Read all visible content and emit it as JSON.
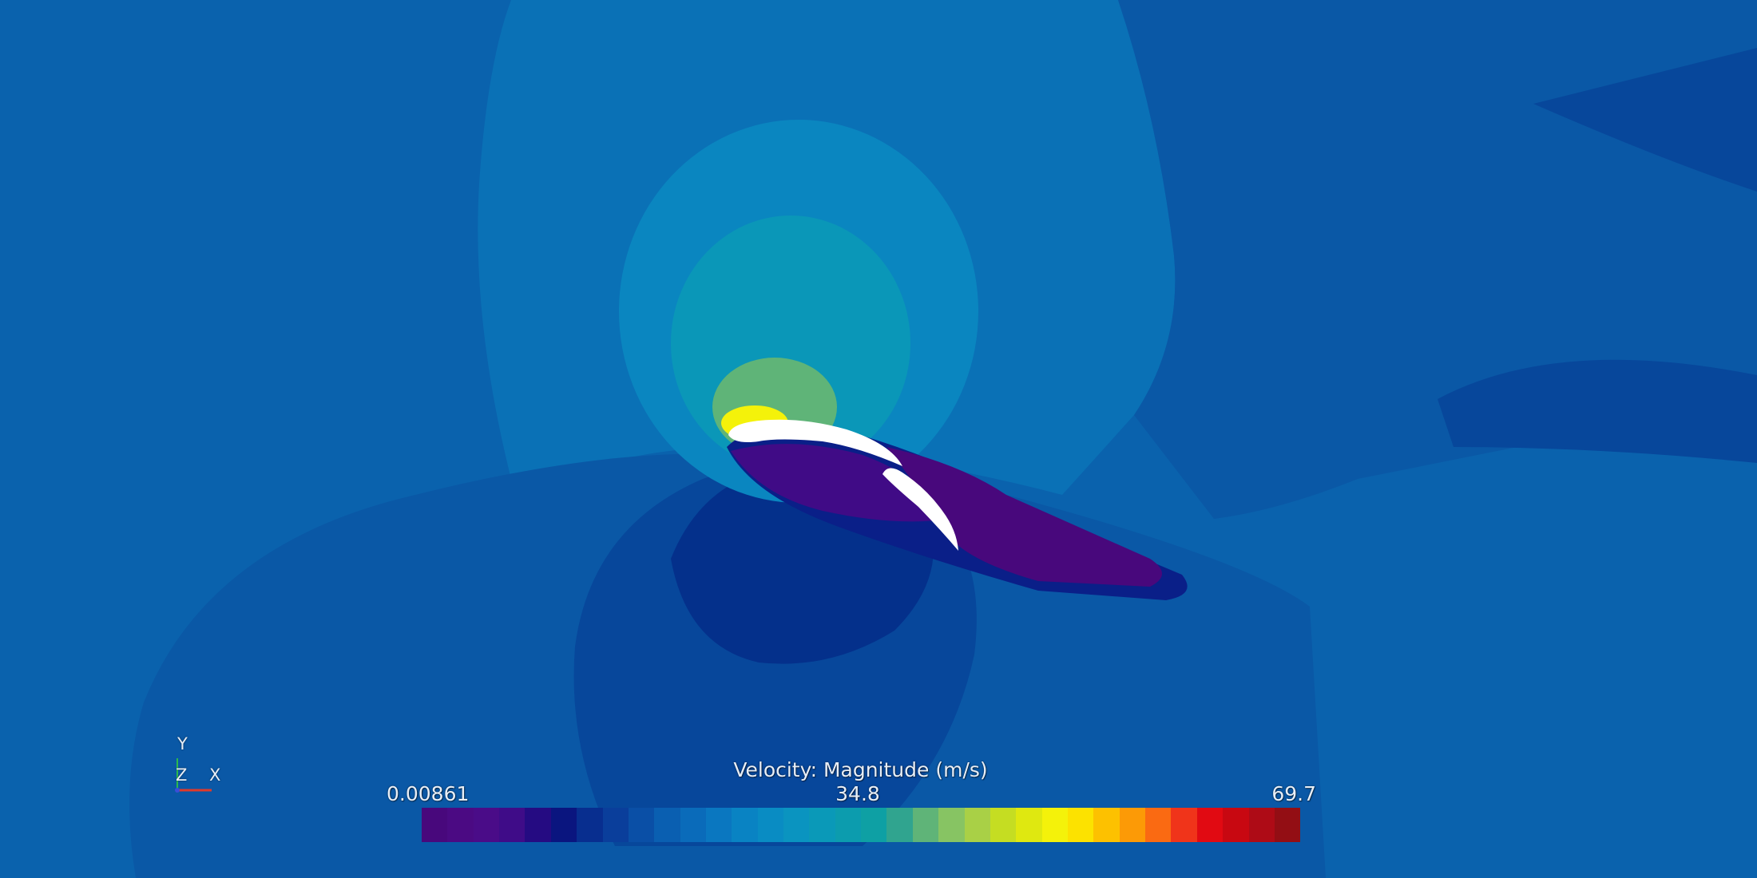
{
  "legend": {
    "title": "Velocity: Magnitude (m/s)",
    "min_label": "0.00861",
    "mid_label": "34.8",
    "max_label": "69.7",
    "colors": [
      "#48087c",
      "#4b0a83",
      "#4a0c88",
      "#3f0c88",
      "#250b82",
      "#0a157f",
      "#082e8f",
      "#0a3e9b",
      "#0a4fa6",
      "#0a5fb1",
      "#0a6bba",
      "#0a77c0",
      "#0983c3",
      "#098cc3",
      "#0a94c0",
      "#0a99b8",
      "#0c9cae",
      "#0ea0a4",
      "#30a48f",
      "#5fb478",
      "#87c463",
      "#a9d046",
      "#c5dd22",
      "#dfe810",
      "#f4f20a",
      "#fce200",
      "#fdc100",
      "#fc9a06",
      "#fa6a12",
      "#f0341a",
      "#e10a12",
      "#c80811",
      "#ae0b16",
      "#930e14"
    ]
  },
  "axes": {
    "y_label": "Y",
    "z_label": "Z",
    "x_label": "X",
    "y_color": "#2cb84c",
    "x_color": "#e03a2a",
    "z_color": "#3a4ed8"
  },
  "field_colors": {
    "background": "#0a62ad",
    "light_blue": "#0a71b6",
    "mid_blue": "#0a58a6",
    "dark_blue": "#07479b",
    "navy": "#04308b",
    "deep_navy": "#0a1f88",
    "violet": "#400b86",
    "purple": "#48087c",
    "cyan": "#0a86c0",
    "teal": "#0a97b8",
    "green": "#5fb478",
    "yellow": "#f4f20a",
    "airfoil": "#ffffff"
  }
}
